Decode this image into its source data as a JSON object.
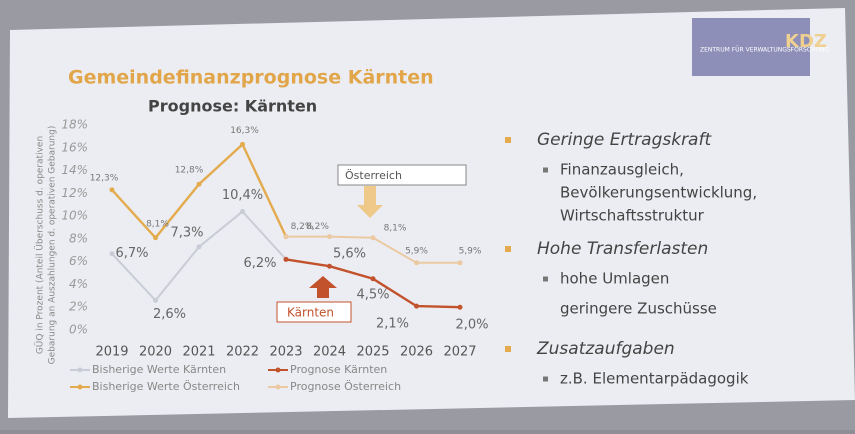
{
  "slide_title": "Gemeindefinanzprognose Kärnten",
  "logo": {
    "org": "ZENTRUM FÜR VERWALTUNGSFORSCHUNG",
    "mark": "KDZ"
  },
  "chart_data": {
    "type": "line",
    "title": "Prognose: Kärnten",
    "y_label": [
      "GÜQ in Prozent (Anteil Überschuss d. operativen",
      "Gebarung an Auszahlungen d. operativen Gebarung)"
    ],
    "x": [
      2019,
      2020,
      2021,
      2022,
      2023,
      2024,
      2025,
      2026,
      2027
    ],
    "xlim": [
      2019,
      2027
    ],
    "xticks": [
      2019,
      2020,
      2021,
      2022,
      2023,
      2024,
      2025,
      2026,
      2027
    ],
    "ylim": [
      0,
      18
    ],
    "yticks": [
      {
        "value": 0,
        "label": "0%"
      },
      {
        "value": 2,
        "label": "2%"
      },
      {
        "value": 4,
        "label": "4%"
      },
      {
        "value": 6,
        "label": "6%"
      },
      {
        "value": 8,
        "label": "8%"
      },
      {
        "value": 10,
        "label": "10%"
      },
      {
        "value": 12,
        "label": "12%"
      },
      {
        "value": 14,
        "label": "14%"
      },
      {
        "value": 16,
        "label": "16%"
      },
      {
        "value": 18,
        "label": "18%"
      }
    ],
    "series": [
      {
        "name": "Bisherige Werte Kärnten",
        "color": "#c9ccd6",
        "values": [
          6.7,
          2.6,
          7.3,
          10.4,
          6.2,
          null,
          null,
          null,
          null
        ],
        "value_labels": [
          "6,7%",
          "2,6%",
          "7,3%",
          "10,4%",
          "6,2%",
          null,
          null,
          null,
          null
        ]
      },
      {
        "name": "Prognose Kärnten",
        "color": "#c2522c",
        "values": [
          null,
          null,
          null,
          null,
          6.2,
          5.6,
          4.5,
          2.1,
          2.0
        ],
        "value_labels": [
          null,
          null,
          null,
          null,
          null,
          "5,6%",
          "4,5%",
          "2,1%",
          "2,0%"
        ]
      },
      {
        "name": "Bisherige Werte Österreich",
        "color": "#e3ab4e",
        "values": [
          12.3,
          8.1,
          12.8,
          16.3,
          8.2,
          null,
          null,
          null,
          null
        ],
        "value_labels": [
          "12,3%",
          "8,1%",
          "12,8%",
          "16,3%",
          null,
          null,
          null,
          null,
          null
        ]
      },
      {
        "name": "Prognose Österreich",
        "color": "#ebc9a2",
        "values": [
          null,
          null,
          null,
          null,
          8.2,
          8.2,
          8.1,
          5.9,
          5.9
        ],
        "value_labels": [
          null,
          null,
          null,
          null,
          "8,2%",
          "8,2%",
          "8,1%",
          "5,9%",
          "5,9%"
        ]
      }
    ],
    "annotations": [
      "Österreich",
      "Kärnten"
    ]
  },
  "bullets": [
    {
      "text": "Geringe Ertragskraft",
      "items": [
        "Finanzausgleich,",
        "Bevölkerungsentwicklung,",
        "Wirtschaftsstruktur"
      ]
    },
    {
      "text": "Hohe Transferlasten",
      "items": [
        "hohe Umlagen",
        "geringere Zuschüsse"
      ]
    },
    {
      "text": "Zusatzaufgaben",
      "items": [
        "z.B. Elementarpädagogik"
      ]
    }
  ]
}
